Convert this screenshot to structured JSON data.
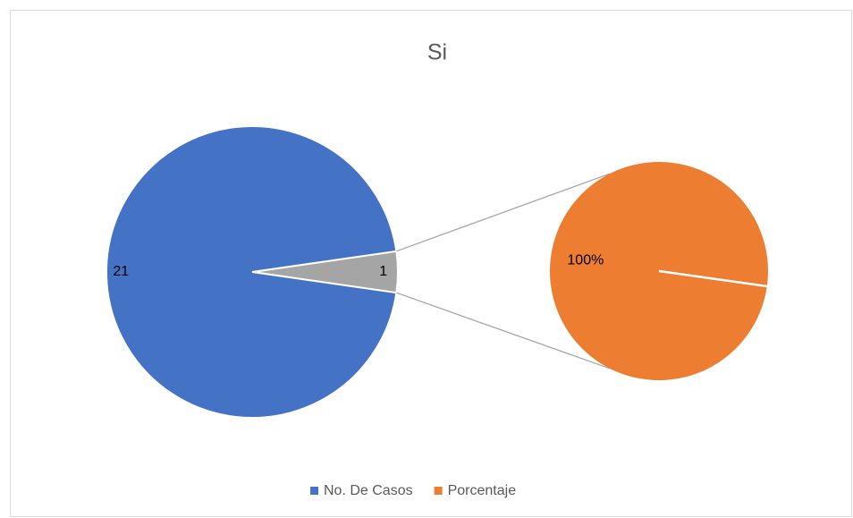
{
  "chart_data": {
    "type": "pie-of-pie",
    "title": "Si",
    "main": {
      "values": [
        21,
        1
      ],
      "colors": [
        "#4472c4",
        "#a5a5a5"
      ]
    },
    "secondary": {
      "values": [
        100
      ],
      "value_labels": [
        "100%"
      ],
      "colors": [
        "#ed7d31"
      ]
    },
    "legend": [
      {
        "name": "No. De Casos",
        "color": "#4472c4"
      },
      {
        "name": "Porcentaje",
        "color": "#ed7d31"
      }
    ]
  }
}
